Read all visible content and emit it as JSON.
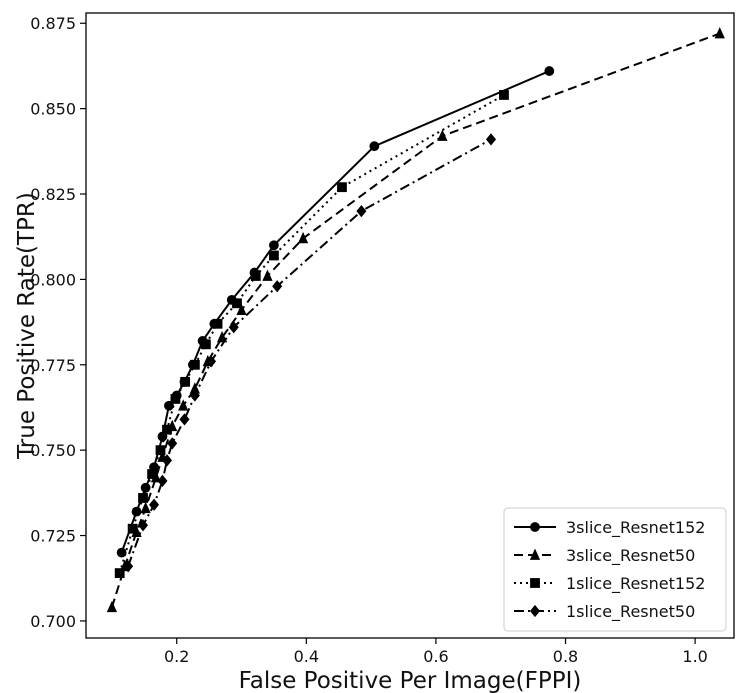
{
  "chart_data": {
    "type": "line",
    "title": "",
    "xlabel": "False Positive Per Image(FPPI)",
    "ylabel": "True Positive Rate(TPR)",
    "xlim": [
      0.06,
      1.06
    ],
    "ylim": [
      0.695,
      0.878
    ],
    "xticks": [
      {
        "value": 0.2,
        "label": "0.2"
      },
      {
        "value": 0.4,
        "label": "0.4"
      },
      {
        "value": 0.6,
        "label": "0.6"
      },
      {
        "value": 0.8,
        "label": "0.8"
      },
      {
        "value": 1.0,
        "label": "1.0"
      }
    ],
    "yticks": [
      {
        "value": 0.7,
        "label": "0.700"
      },
      {
        "value": 0.725,
        "label": "0.725"
      },
      {
        "value": 0.75,
        "label": "0.750"
      },
      {
        "value": 0.775,
        "label": "0.775"
      },
      {
        "value": 0.8,
        "label": "0.800"
      },
      {
        "value": 0.825,
        "label": "0.825"
      },
      {
        "value": 0.85,
        "label": "0.850"
      },
      {
        "value": 0.875,
        "label": "0.875"
      }
    ],
    "grid": false,
    "legend": "bottom-right",
    "series": [
      {
        "name": "3slice_Resnet152",
        "linestyle": "solid",
        "marker": "circle",
        "color": "#000000",
        "x": [
          0.115,
          0.138,
          0.152,
          0.165,
          0.178,
          0.188,
          0.2,
          0.212,
          0.225,
          0.24,
          0.258,
          0.285,
          0.32,
          0.35,
          0.505,
          0.775
        ],
        "y": [
          0.72,
          0.732,
          0.739,
          0.745,
          0.754,
          0.763,
          0.766,
          0.77,
          0.775,
          0.782,
          0.787,
          0.794,
          0.802,
          0.81,
          0.839,
          0.861
        ]
      },
      {
        "name": "3slice_Resnet50",
        "linestyle": "dashed",
        "marker": "triangle",
        "color": "#000000",
        "x": [
          0.1,
          0.12,
          0.138,
          0.152,
          0.168,
          0.178,
          0.193,
          0.21,
          0.228,
          0.248,
          0.27,
          0.3,
          0.34,
          0.395,
          0.61,
          1.038
        ],
        "y": [
          0.704,
          0.716,
          0.726,
          0.733,
          0.742,
          0.748,
          0.757,
          0.763,
          0.768,
          0.776,
          0.783,
          0.791,
          0.801,
          0.812,
          0.842,
          0.872
        ]
      },
      {
        "name": "1slice_Resnet152",
        "linestyle": "dotted",
        "marker": "square",
        "color": "#000000",
        "x": [
          0.112,
          0.132,
          0.148,
          0.162,
          0.175,
          0.185,
          0.198,
          0.213,
          0.228,
          0.245,
          0.263,
          0.293,
          0.322,
          0.35,
          0.455,
          0.705
        ],
        "y": [
          0.714,
          0.727,
          0.736,
          0.743,
          0.75,
          0.756,
          0.765,
          0.77,
          0.775,
          0.781,
          0.787,
          0.793,
          0.801,
          0.807,
          0.827,
          0.854
        ]
      },
      {
        "name": "1slice_Resnet50",
        "linestyle": "dashdot",
        "marker": "diamond",
        "color": "#000000",
        "x": [
          0.125,
          0.148,
          0.165,
          0.178,
          0.185,
          0.193,
          0.212,
          0.228,
          0.253,
          0.288,
          0.355,
          0.485,
          0.685
        ],
        "y": [
          0.716,
          0.728,
          0.734,
          0.741,
          0.747,
          0.752,
          0.759,
          0.766,
          0.776,
          0.786,
          0.798,
          0.82,
          0.841
        ]
      }
    ]
  }
}
